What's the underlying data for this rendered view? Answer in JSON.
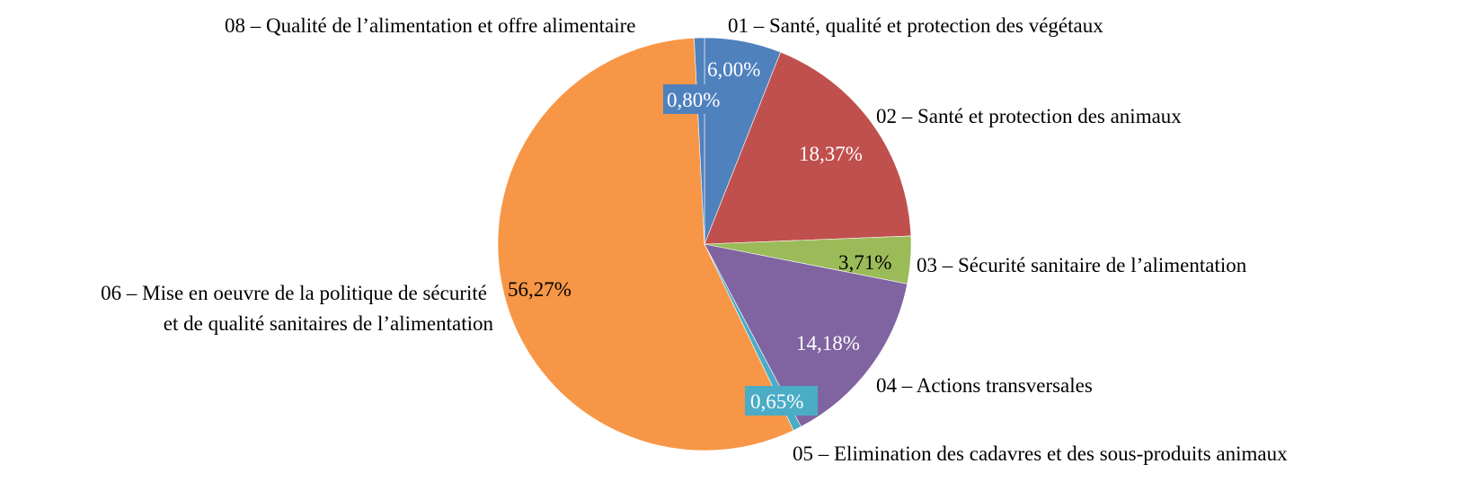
{
  "chart_data": {
    "type": "pie",
    "start_angle": "top",
    "direction": "clockwise",
    "legend": "none",
    "slices": [
      {
        "label": "01 – Santé, qualité et protection des végétaux",
        "value": 6.0,
        "value_label": "6,00%",
        "color": "#4F81BD"
      },
      {
        "label": "02 – Santé et protection des animaux",
        "value": 18.37,
        "value_label": "18,37%",
        "color": "#C0504D"
      },
      {
        "label": "03 – Sécurité sanitaire de l’alimentation",
        "value": 3.71,
        "value_label": "3,71%",
        "color": "#9BBB59"
      },
      {
        "label": "04 – Actions transversales",
        "value": 14.18,
        "value_label": "14,18%",
        "color": "#8064A2"
      },
      {
        "label": "05 – Elimination des cadavres et des sous-produits animaux",
        "value": 0.65,
        "value_label": "0,65%",
        "color": "#4BACC6"
      },
      {
        "label_lines": [
          "06 – Mise en oeuvre de la politique de sécurité",
          "et de qualité sanitaires de l’alimentation"
        ],
        "value": 56.27,
        "value_label": "56,27%",
        "color": "#F79646"
      },
      {
        "label": "08 – Qualité de l’alimentation et offre alimentaire",
        "value": 0.8,
        "value_label": "0,80%",
        "color": "#4F81BD"
      }
    ]
  }
}
